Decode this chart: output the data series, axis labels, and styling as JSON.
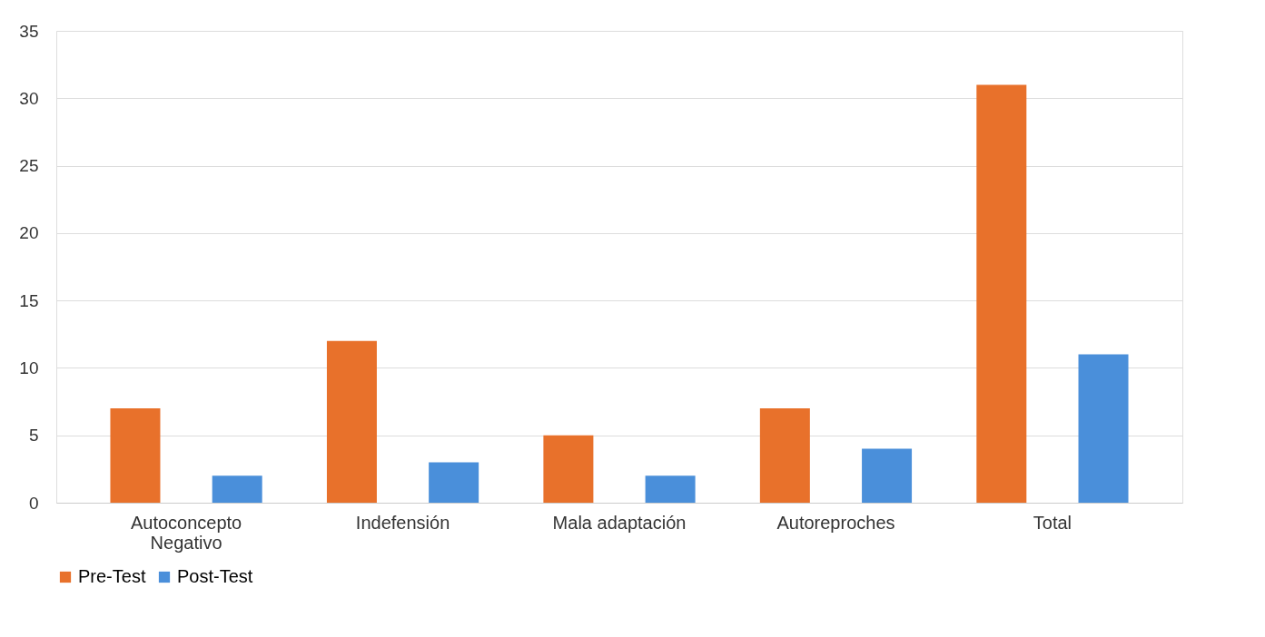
{
  "chart_data": {
    "type": "bar",
    "categories": [
      "Autoconcepto\nNegativo",
      "Indefensión",
      "Mala adaptación",
      "Autoreproches",
      "Total"
    ],
    "series": [
      {
        "name": "Pre-Test",
        "color": "#e8712b",
        "values": [
          7,
          12,
          5,
          7,
          31
        ]
      },
      {
        "name": "Post-Test",
        "color": "#4a8fda",
        "values": [
          2,
          3,
          2,
          4,
          11
        ]
      }
    ],
    "ylim": [
      0,
      35
    ],
    "yticks": [
      0,
      5,
      10,
      15,
      20,
      25,
      30,
      35
    ],
    "grid": "y",
    "legend": "bottom"
  }
}
